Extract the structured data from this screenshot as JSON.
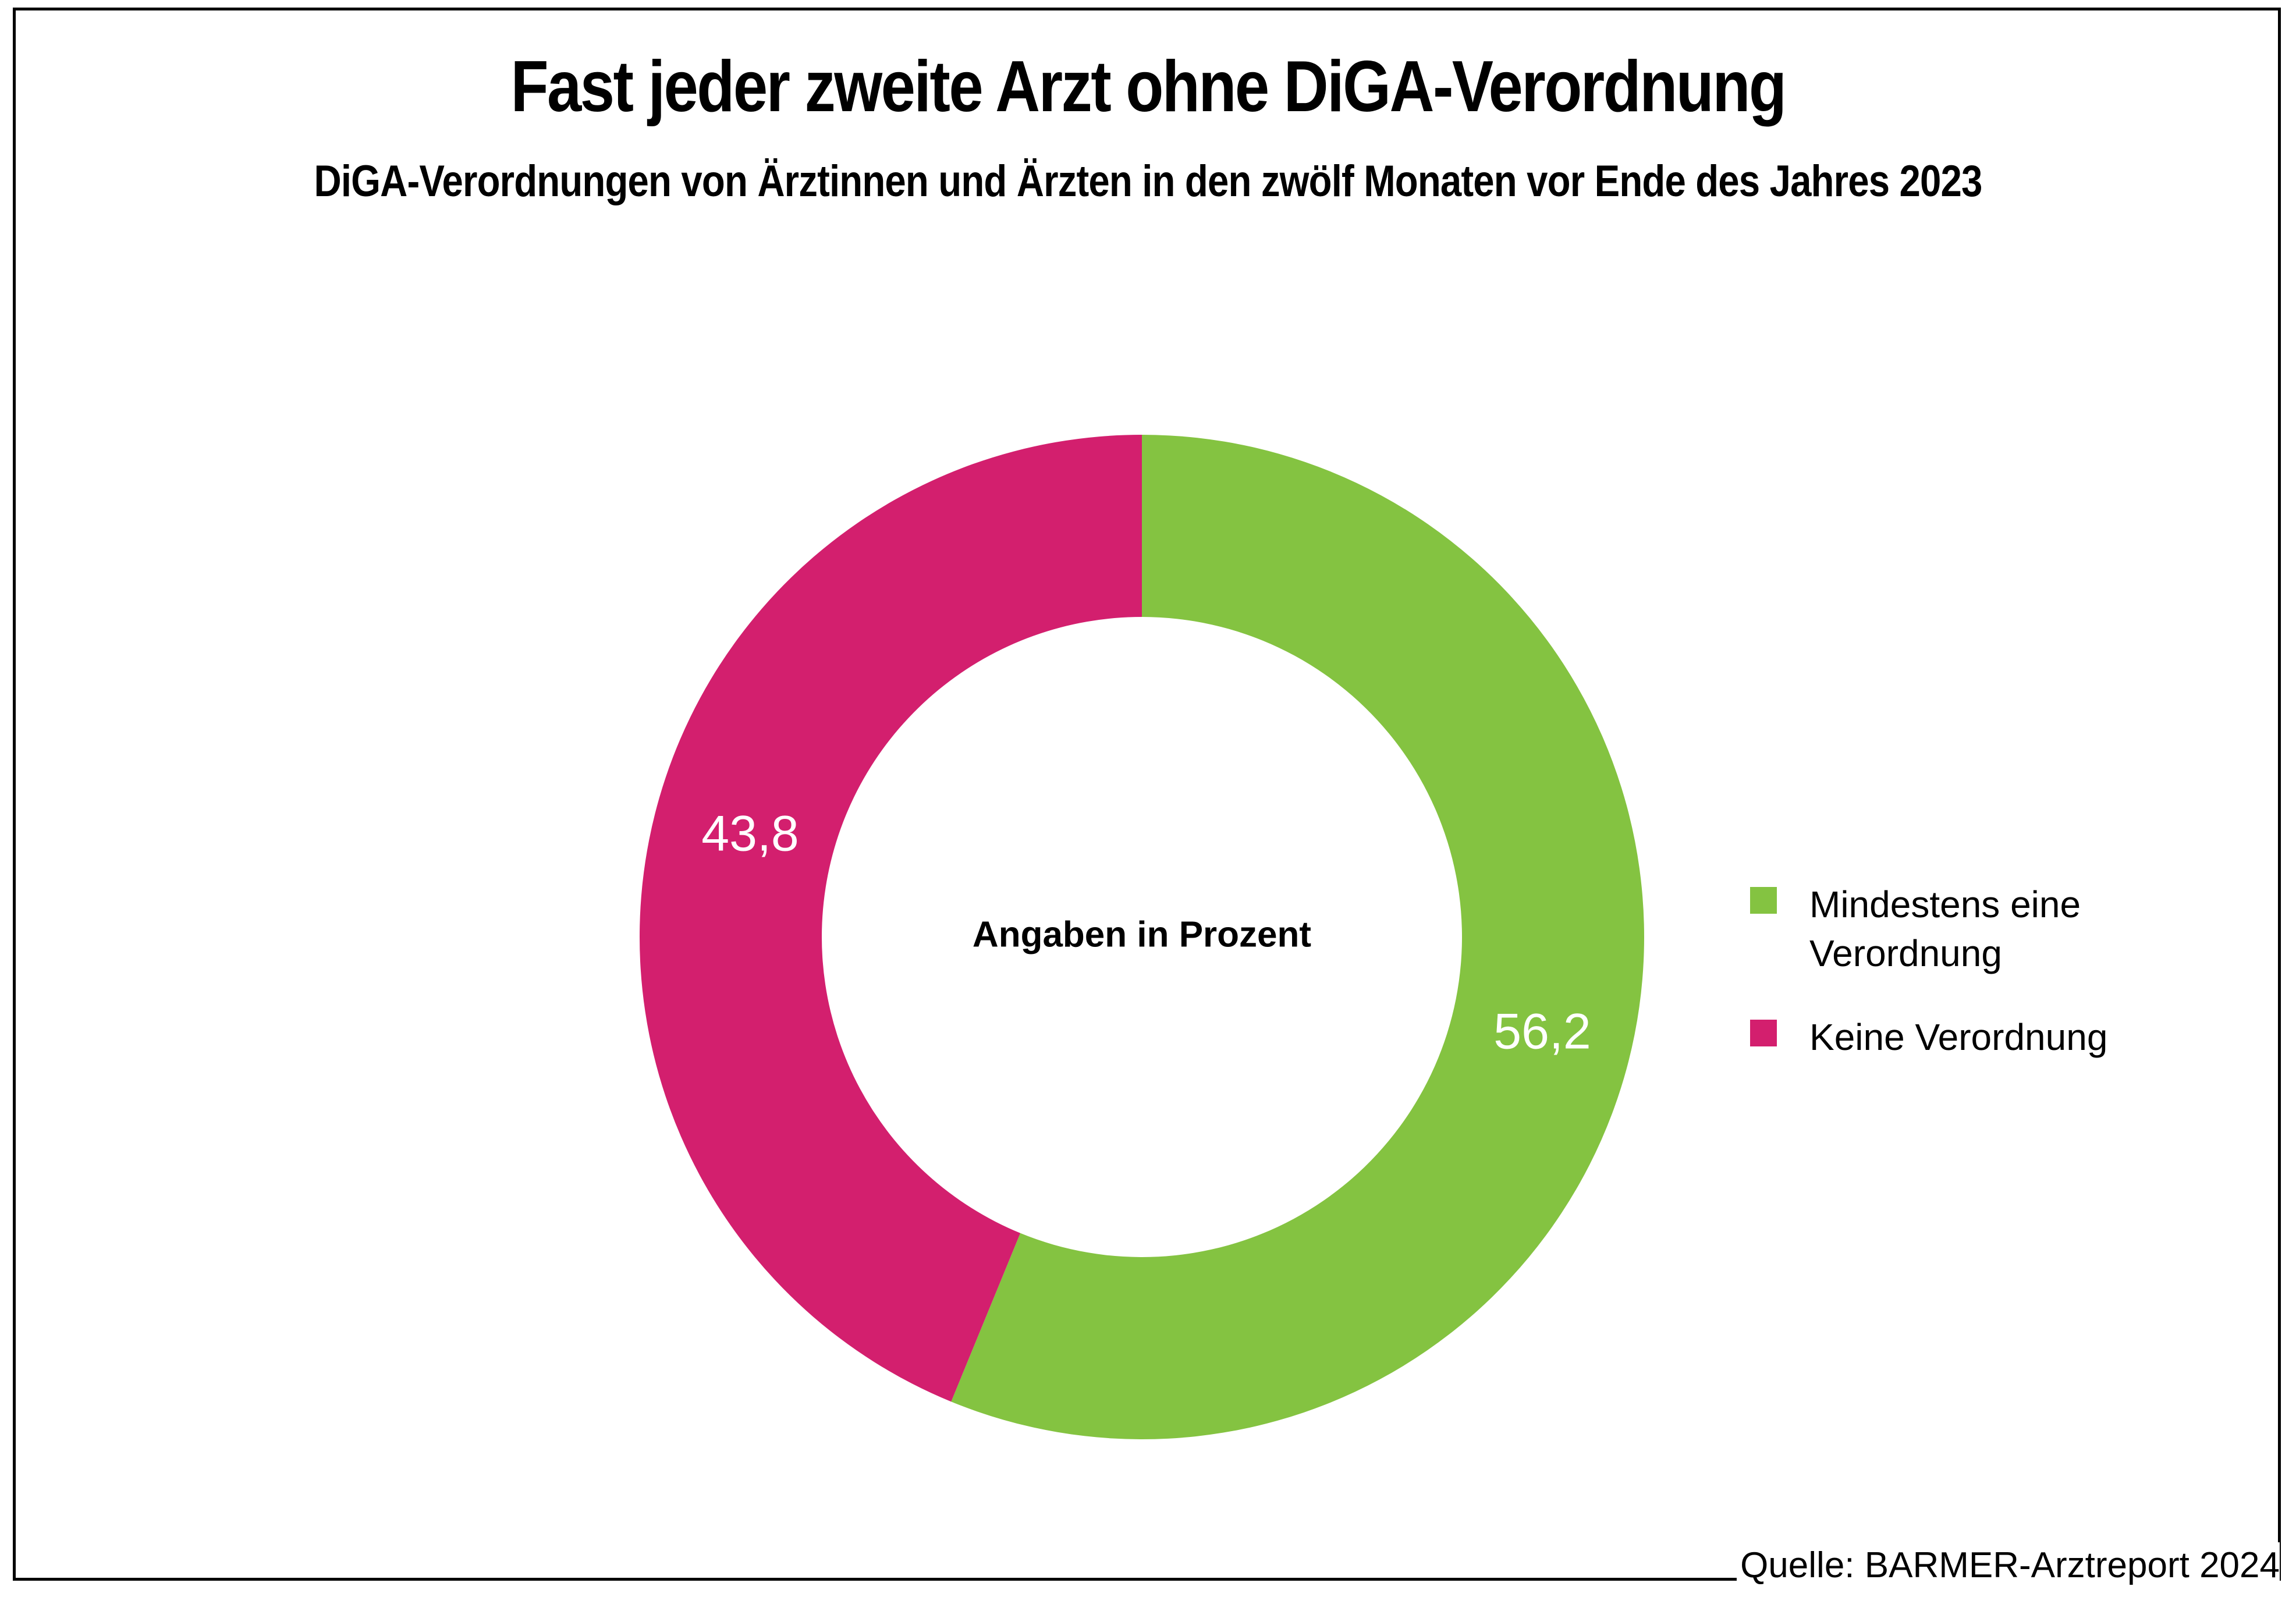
{
  "title": "Fast jeder zweite Arzt ohne DiGA-Verordnung",
  "subtitle": "DiGA-Verordnungen von Ärztinnen und Ärzten in den zwölf Monaten vor Ende des Jahres 2023",
  "source": "Quelle: BARMER-Arztreport 2024",
  "chart_data": {
    "type": "pie",
    "variant": "donut",
    "title": "Fast jeder zweite Arzt ohne DiGA-Verordnung",
    "subtitle": "DiGA-Verordnungen von Ärztinnen und Ärzten in den zwölf Monaten vor Ende des Jahres 2023",
    "center_label": "Angaben in Prozent",
    "unit": "%",
    "start": "12 o'clock, clockwise",
    "legend_position": "right",
    "slices": [
      {
        "name": "Mindestens eine Verordnung",
        "value": 56.2,
        "label": "56,2",
        "color": "#84C341"
      },
      {
        "name": "Keine Verordnung",
        "value": 43.8,
        "label": "43,8",
        "color": "#D31F6E"
      }
    ]
  },
  "legend": [
    {
      "label": "Mindestens eine Verordnung",
      "color": "#84C341"
    },
    {
      "label": "Keine Verordnung",
      "color": "#D31F6E"
    }
  ]
}
